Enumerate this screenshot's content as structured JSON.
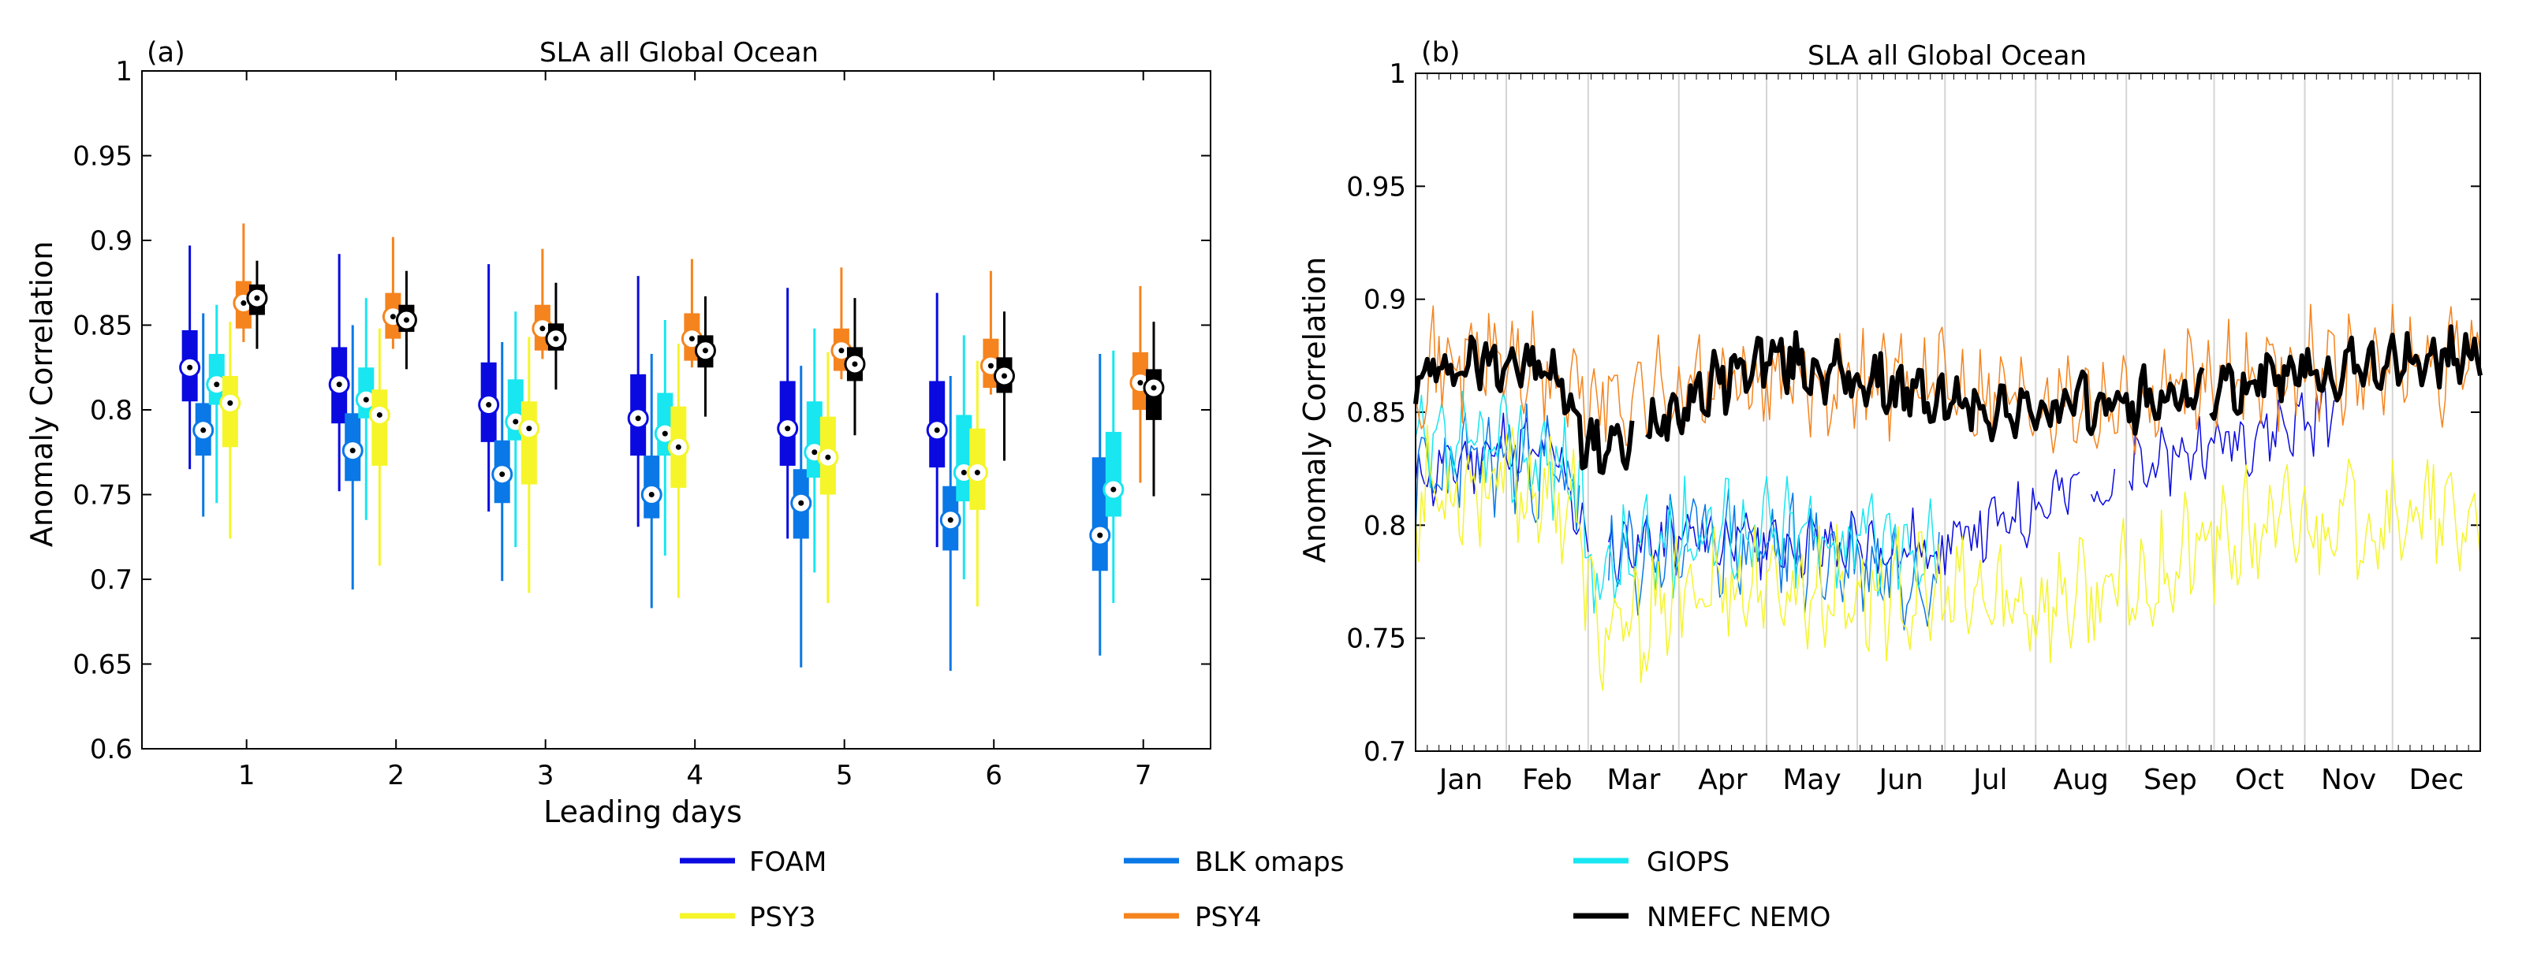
{
  "chart_data": [
    {
      "type": "box",
      "panel_label": "(a)",
      "title": "SLA all Global Ocean",
      "xlabel": "Leading days",
      "ylabel": "Anomaly Correlation",
      "xlim": [
        0.3,
        7.45
      ],
      "ylim": [
        0.6,
        1.0
      ],
      "yticks": [
        "0.6",
        "0.65",
        "0.7",
        "0.75",
        "0.8",
        "0.85",
        "0.9",
        "0.95",
        "1"
      ],
      "categories": [
        "1",
        "2",
        "3",
        "4",
        "5",
        "6",
        "7"
      ],
      "series": [
        {
          "name": "FOAM",
          "color": "#0a0ae0",
          "boxes": [
            {
              "min": 0.765,
              "q1": 0.805,
              "median": 0.825,
              "q3": 0.847,
              "max": 0.897
            },
            {
              "min": 0.752,
              "q1": 0.792,
              "median": 0.815,
              "q3": 0.837,
              "max": 0.892
            },
            {
              "min": 0.74,
              "q1": 0.781,
              "median": 0.803,
              "q3": 0.828,
              "max": 0.886
            },
            {
              "min": 0.731,
              "q1": 0.773,
              "median": 0.795,
              "q3": 0.821,
              "max": 0.879
            },
            {
              "min": 0.724,
              "q1": 0.767,
              "median": 0.789,
              "q3": 0.817,
              "max": 0.872
            },
            {
              "min": 0.719,
              "q1": 0.766,
              "median": 0.788,
              "q3": 0.817,
              "max": 0.869
            },
            null
          ]
        },
        {
          "name": "BLK omaps",
          "color": "#0a78e6",
          "boxes": [
            {
              "min": 0.737,
              "q1": 0.773,
              "median": 0.788,
              "q3": 0.804,
              "max": 0.857
            },
            {
              "min": 0.694,
              "q1": 0.758,
              "median": 0.776,
              "q3": 0.798,
              "max": 0.85
            },
            {
              "min": 0.699,
              "q1": 0.745,
              "median": 0.762,
              "q3": 0.782,
              "max": 0.84
            },
            {
              "min": 0.683,
              "q1": 0.736,
              "median": 0.75,
              "q3": 0.773,
              "max": 0.833
            },
            {
              "min": 0.648,
              "q1": 0.724,
              "median": 0.745,
              "q3": 0.765,
              "max": 0.826
            },
            {
              "min": 0.646,
              "q1": 0.717,
              "median": 0.735,
              "q3": 0.755,
              "max": 0.82
            },
            {
              "min": 0.655,
              "q1": 0.705,
              "median": 0.726,
              "q3": 0.772,
              "max": 0.833
            }
          ]
        },
        {
          "name": "GIOPS",
          "color": "#18e6f0",
          "boxes": [
            {
              "min": 0.745,
              "q1": 0.803,
              "median": 0.815,
              "q3": 0.833,
              "max": 0.862
            },
            {
              "min": 0.735,
              "q1": 0.795,
              "median": 0.806,
              "q3": 0.825,
              "max": 0.866
            },
            {
              "min": 0.719,
              "q1": 0.782,
              "median": 0.793,
              "q3": 0.818,
              "max": 0.858
            },
            {
              "min": 0.714,
              "q1": 0.773,
              "median": 0.786,
              "q3": 0.81,
              "max": 0.853
            },
            {
              "min": 0.704,
              "q1": 0.76,
              "median": 0.775,
              "q3": 0.805,
              "max": 0.848
            },
            {
              "min": 0.7,
              "q1": 0.746,
              "median": 0.763,
              "q3": 0.797,
              "max": 0.844
            },
            {
              "min": 0.686,
              "q1": 0.737,
              "median": 0.753,
              "q3": 0.787,
              "max": 0.835
            }
          ]
        },
        {
          "name": "PSY3",
          "color": "#f5f52a",
          "boxes": [
            {
              "min": 0.724,
              "q1": 0.778,
              "median": 0.804,
              "q3": 0.82,
              "max": 0.852
            },
            {
              "min": 0.708,
              "q1": 0.767,
              "median": 0.797,
              "q3": 0.812,
              "max": 0.848
            },
            {
              "min": 0.692,
              "q1": 0.756,
              "median": 0.789,
              "q3": 0.805,
              "max": 0.843
            },
            {
              "min": 0.689,
              "q1": 0.754,
              "median": 0.778,
              "q3": 0.802,
              "max": 0.839
            },
            {
              "min": 0.686,
              "q1": 0.75,
              "median": 0.772,
              "q3": 0.796,
              "max": 0.834
            },
            {
              "min": 0.684,
              "q1": 0.741,
              "median": 0.763,
              "q3": 0.789,
              "max": 0.829
            },
            null
          ]
        },
        {
          "name": "PSY4",
          "color": "#f5841e",
          "boxes": [
            {
              "min": 0.84,
              "q1": 0.848,
              "median": 0.863,
              "q3": 0.876,
              "max": 0.91
            },
            {
              "min": 0.836,
              "q1": 0.842,
              "median": 0.855,
              "q3": 0.869,
              "max": 0.902
            },
            {
              "min": 0.83,
              "q1": 0.835,
              "median": 0.848,
              "q3": 0.862,
              "max": 0.895
            },
            {
              "min": 0.825,
              "q1": 0.829,
              "median": 0.842,
              "q3": 0.857,
              "max": 0.889
            },
            {
              "min": 0.818,
              "q1": 0.823,
              "median": 0.835,
              "q3": 0.848,
              "max": 0.884
            },
            {
              "min": 0.809,
              "q1": 0.813,
              "median": 0.826,
              "q3": 0.842,
              "max": 0.882
            },
            {
              "min": 0.757,
              "q1": 0.8,
              "median": 0.816,
              "q3": 0.834,
              "max": 0.873
            }
          ]
        },
        {
          "name": "NMEFC NEMO",
          "color": "#000000",
          "boxes": [
            {
              "min": 0.836,
              "q1": 0.856,
              "median": 0.866,
              "q3": 0.874,
              "max": 0.888
            },
            {
              "min": 0.824,
              "q1": 0.846,
              "median": 0.853,
              "q3": 0.862,
              "max": 0.882
            },
            {
              "min": 0.812,
              "q1": 0.835,
              "median": 0.842,
              "q3": 0.851,
              "max": 0.875
            },
            {
              "min": 0.796,
              "q1": 0.825,
              "median": 0.835,
              "q3": 0.844,
              "max": 0.867
            },
            {
              "min": 0.785,
              "q1": 0.817,
              "median": 0.827,
              "q3": 0.837,
              "max": 0.866
            },
            {
              "min": 0.77,
              "q1": 0.81,
              "median": 0.82,
              "q3": 0.831,
              "max": 0.858
            },
            {
              "min": 0.749,
              "q1": 0.794,
              "median": 0.813,
              "q3": 0.824,
              "max": 0.852
            }
          ]
        }
      ]
    },
    {
      "type": "line",
      "panel_label": "(b)",
      "title": "SLA all Global Ocean",
      "xlabel": "",
      "ylabel": "Anomaly Correlation",
      "xlim": [
        1,
        365
      ],
      "ylim": [
        0.7,
        1.0
      ],
      "yticks": [
        "0.7",
        "0.75",
        "0.8",
        "0.85",
        "0.9",
        "0.95",
        "1"
      ],
      "month_labels": [
        "Jan",
        "Feb",
        "Mar",
        "Apr",
        "May",
        "Jun",
        "Jul",
        "Aug",
        "Sep",
        "Oct",
        "Nov",
        "Dec"
      ],
      "month_boundaries_day": [
        32,
        60,
        91,
        121,
        152,
        182,
        213,
        244,
        274,
        305,
        335
      ],
      "series": [
        {
          "name": "FOAM",
          "color": "#0a0ae0",
          "width": 1.5,
          "active": [
            [
              1,
              60
            ],
            [
              67,
              228
            ],
            [
              232,
              240
            ],
            [
              245,
              315
            ]
          ],
          "base": [
            [
              1,
              0.82
            ],
            [
              30,
              0.835
            ],
            [
              50,
              0.83
            ],
            [
              60,
              0.79
            ],
            [
              67,
              0.79
            ],
            [
              100,
              0.795
            ],
            [
              150,
              0.79
            ],
            [
              180,
              0.79
            ],
            [
              200,
              0.8
            ],
            [
              215,
              0.81
            ],
            [
              240,
              0.82
            ],
            [
              270,
              0.835
            ],
            [
              300,
              0.845
            ],
            [
              315,
              0.85
            ]
          ],
          "amp": 0.012,
          "seed": 11
        },
        {
          "name": "BLK omaps",
          "color": "#0a78e6",
          "width": 1.5,
          "active": [
            [
              1,
              57
            ],
            [
              67,
              180
            ]
          ],
          "base": [
            [
              1,
              0.82
            ],
            [
              30,
              0.83
            ],
            [
              55,
              0.82
            ],
            [
              67,
              0.78
            ],
            [
              100,
              0.795
            ],
            [
              140,
              0.785
            ],
            [
              180,
              0.78
            ]
          ],
          "amp": 0.018,
          "seed": 23
        },
        {
          "name": "GIOPS",
          "color": "#18e6f0",
          "width": 1.5,
          "active": [
            [
              1,
              180
            ]
          ],
          "base": [
            [
              1,
              0.83
            ],
            [
              30,
              0.835
            ],
            [
              55,
              0.825
            ],
            [
              60,
              0.78
            ],
            [
              65,
              0.78
            ],
            [
              100,
              0.8
            ],
            [
              140,
              0.795
            ],
            [
              180,
              0.79
            ]
          ],
          "amp": 0.018,
          "seed": 37
        },
        {
          "name": "PSY3",
          "color": "#f5f52a",
          "width": 1.5,
          "active": [
            [
              1,
              365
            ]
          ],
          "base": [
            [
              1,
              0.815
            ],
            [
              30,
              0.82
            ],
            [
              55,
              0.81
            ],
            [
              62,
              0.755
            ],
            [
              70,
              0.75
            ],
            [
              100,
              0.775
            ],
            [
              150,
              0.77
            ],
            [
              210,
              0.765
            ],
            [
              240,
              0.77
            ],
            [
              270,
              0.79
            ],
            [
              300,
              0.8
            ],
            [
              330,
              0.805
            ],
            [
              365,
              0.8
            ]
          ],
          "amp": 0.02,
          "seed": 53
        },
        {
          "name": "PSY4",
          "color": "#f5841e",
          "width": 1.5,
          "active": [
            [
              1,
              365
            ]
          ],
          "base": [
            [
              1,
              0.87
            ],
            [
              30,
              0.875
            ],
            [
              60,
              0.855
            ],
            [
              90,
              0.86
            ],
            [
              150,
              0.865
            ],
            [
              200,
              0.86
            ],
            [
              250,
              0.855
            ],
            [
              300,
              0.87
            ],
            [
              365,
              0.87
            ]
          ],
          "amp": 0.018,
          "seed": 71
        },
        {
          "name": "NMEFC NEMO",
          "color": "#000000",
          "width": 6,
          "active": [
            [
              1,
              75
            ],
            [
              80,
              270
            ],
            [
              273,
              365
            ]
          ],
          "base": [
            [
              1,
              0.865
            ],
            [
              30,
              0.875
            ],
            [
              50,
              0.865
            ],
            [
              60,
              0.835
            ],
            [
              75,
              0.835
            ],
            [
              85,
              0.85
            ],
            [
              100,
              0.86
            ],
            [
              120,
              0.875
            ],
            [
              150,
              0.865
            ],
            [
              180,
              0.855
            ],
            [
              210,
              0.85
            ],
            [
              250,
              0.855
            ],
            [
              280,
              0.86
            ],
            [
              320,
              0.87
            ],
            [
              365,
              0.875
            ]
          ],
          "amp": 0.01,
          "seed": 97
        }
      ]
    }
  ],
  "legend": {
    "items": [
      {
        "label": "FOAM",
        "color": "#0a0ae0"
      },
      {
        "label": "BLK omaps",
        "color": "#0a78e6"
      },
      {
        "label": "GIOPS",
        "color": "#18e6f0"
      },
      {
        "label": "PSY3",
        "color": "#f5f52a"
      },
      {
        "label": "PSY4",
        "color": "#f5841e"
      },
      {
        "label": "NMEFC NEMO",
        "color": "#000000"
      }
    ]
  }
}
